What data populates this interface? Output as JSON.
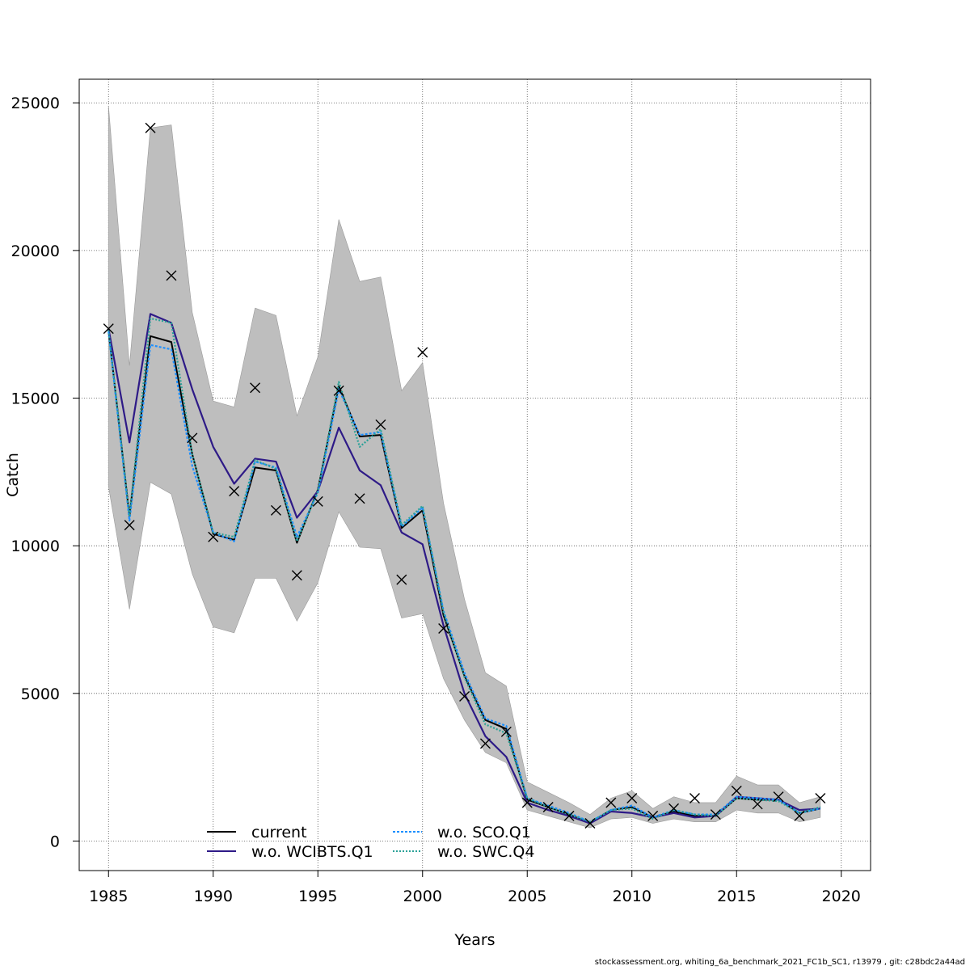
{
  "chart_data": {
    "type": "line",
    "xlabel": "Years",
    "ylabel": "Catch",
    "xlim": [
      1983.6,
      2021.4
    ],
    "ylim": [
      -1000,
      25800
    ],
    "xticks": [
      1985,
      1990,
      1995,
      2000,
      2005,
      2010,
      2015,
      2020
    ],
    "yticks": [
      0,
      5000,
      10000,
      15000,
      20000,
      25000
    ],
    "grid": true,
    "legend_position": "bottom-center",
    "x": [
      1985,
      1986,
      1987,
      1988,
      1989,
      1990,
      1991,
      1992,
      1993,
      1994,
      1995,
      1996,
      1997,
      1998,
      1999,
      2000,
      2001,
      2002,
      2003,
      2004,
      2005,
      2006,
      2007,
      2008,
      2009,
      2010,
      2011,
      2012,
      2013,
      2014,
      2015,
      2016,
      2017,
      2018,
      2019
    ],
    "band": {
      "color": "#bebebe",
      "upper": [
        24900,
        16100,
        24150,
        24250,
        17900,
        14900,
        14700,
        18050,
        17800,
        14400,
        16400,
        21050,
        18950,
        19100,
        15250,
        16200,
        11450,
        8200,
        5700,
        5250,
        2000,
        1650,
        1300,
        900,
        1450,
        1700,
        1100,
        1500,
        1300,
        1300,
        2200,
        1900,
        1900,
        1300,
        1500
      ],
      "lower": [
        12000,
        7850,
        12150,
        11750,
        9050,
        7250,
        7050,
        8900,
        8900,
        7450,
        8750,
        11150,
        9950,
        9900,
        7550,
        7700,
        5500,
        4100,
        3000,
        2650,
        1050,
        850,
        650,
        450,
        750,
        800,
        600,
        750,
        650,
        650,
        1050,
        950,
        950,
        650,
        800
      ]
    },
    "series": [
      {
        "name": "current",
        "color": "#000000",
        "dash": "",
        "values": [
          17300,
          11000,
          17100,
          16900,
          13100,
          10400,
          10200,
          12650,
          12550,
          10100,
          11900,
          15400,
          13700,
          13750,
          10600,
          11200,
          7650,
          5600,
          4100,
          3800,
          1400,
          1150,
          900,
          600,
          1050,
          1150,
          800,
          1000,
          850,
          850,
          1450,
          1400,
          1400,
          950,
          1100
        ]
      },
      {
        "name": "w.o. WCIBTS.Q1",
        "color": "#2e1a87",
        "dash": "",
        "values": [
          17350,
          13500,
          17850,
          17550,
          15300,
          13350,
          12100,
          12950,
          12850,
          10950,
          11850,
          14000,
          12550,
          12050,
          10450,
          10050,
          7300,
          5000,
          3550,
          2850,
          1300,
          1050,
          850,
          600,
          1000,
          950,
          800,
          950,
          800,
          850,
          1500,
          1450,
          1400,
          1050,
          1100
        ]
      },
      {
        "name": "w.o. SCO.Q1",
        "color": "#1e90ff",
        "dash": "3,2",
        "values": [
          17250,
          10850,
          16800,
          16650,
          12700,
          10450,
          10150,
          12850,
          12650,
          10300,
          11800,
          15300,
          13750,
          13850,
          10650,
          11300,
          7800,
          5700,
          4150,
          3900,
          1450,
          1200,
          950,
          650,
          1050,
          1200,
          800,
          1050,
          900,
          900,
          1500,
          1450,
          1400,
          950,
          1100
        ]
      },
      {
        "name": "w.o. SWC.Q4",
        "color": "#2aa198",
        "dash": "2,2",
        "values": [
          17300,
          11000,
          17700,
          17550,
          13100,
          10450,
          10300,
          12900,
          12600,
          10150,
          11850,
          15550,
          13350,
          13950,
          10700,
          11350,
          7750,
          5550,
          3950,
          3650,
          1450,
          1150,
          900,
          650,
          1050,
          1100,
          750,
          1050,
          900,
          850,
          1450,
          1400,
          1350,
          950,
          1150
        ]
      }
    ],
    "observed": {
      "marker": "x",
      "x": [
        1985,
        1986,
        1987,
        1988,
        1989,
        1990,
        1991,
        1992,
        1993,
        1994,
        1995,
        1996,
        1997,
        1998,
        1999,
        2000,
        2001,
        2002,
        2003,
        2004,
        2005,
        2006,
        2007,
        2008,
        2009,
        2010,
        2011,
        2012,
        2013,
        2014,
        2015,
        2016,
        2017,
        2018,
        2019
      ],
      "values": [
        17350,
        10700,
        24150,
        19150,
        13650,
        10300,
        11850,
        15350,
        11200,
        9000,
        11500,
        15250,
        11600,
        14100,
        8850,
        16550,
        7200,
        4900,
        3300,
        3700,
        1300,
        1150,
        850,
        600,
        1300,
        1450,
        850,
        1100,
        1450,
        900,
        1700,
        1250,
        1500,
        850,
        1450
      ]
    }
  },
  "footer": "stockassessment.org, whiting_6a_benchmark_2021_FC1b_SC1, r13979 , git: c28bdc2a44ad"
}
